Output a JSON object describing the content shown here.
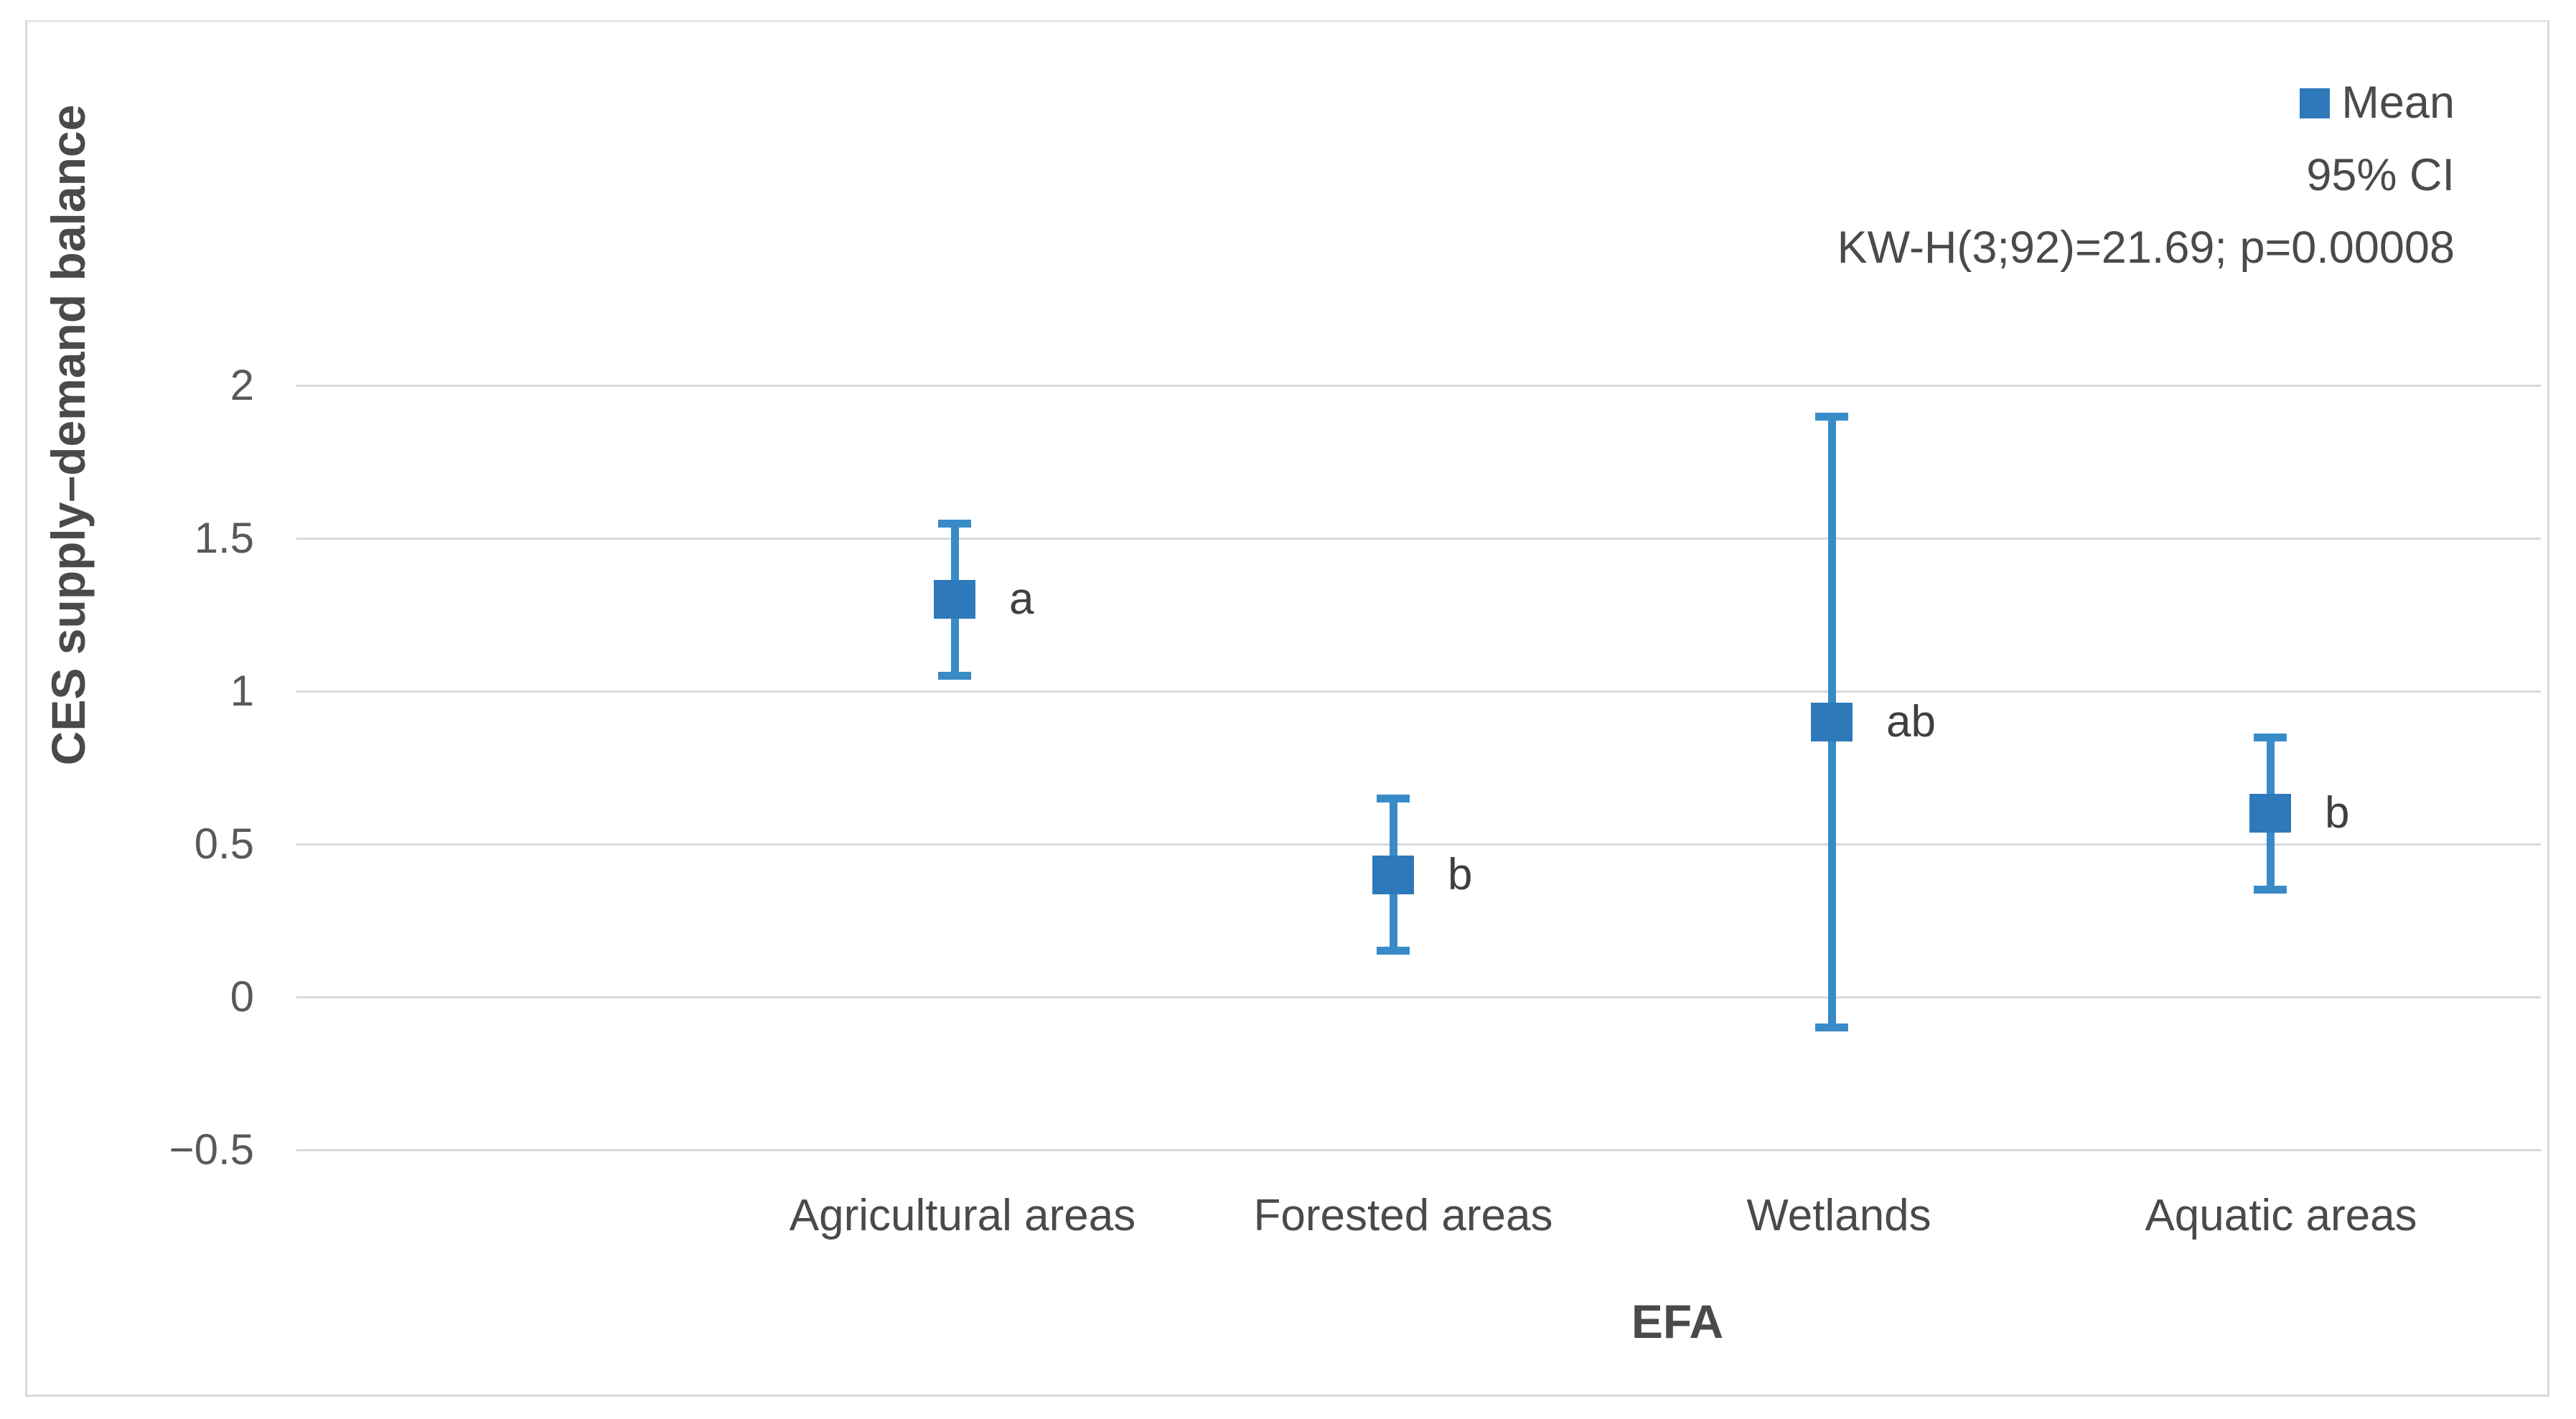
{
  "legend": {
    "mean_label": "Mean",
    "ci_label": "95% CI",
    "stat_text": "KW-H(3;92)=21.69; p=0.00008"
  },
  "axes": {
    "y_title": "CES supply–demand balance",
    "x_title": "EFA"
  },
  "chart_data": {
    "type": "scatter",
    "subtype": "mean-with-95ci-error-bars",
    "title": "",
    "xlabel": "EFA",
    "ylabel": "CES supply–demand balance",
    "categories": [
      "Agricultural areas",
      "Forested areas",
      "Wetlands",
      "Aquatic areas"
    ],
    "series": [
      {
        "name": "Mean",
        "values": [
          1.3,
          0.4,
          0.9,
          0.6
        ],
        "ci_low": [
          1.05,
          0.15,
          -0.1,
          0.35
        ],
        "ci_high": [
          1.55,
          0.65,
          1.9,
          0.85
        ],
        "sig_letters": [
          "a",
          "b",
          "ab",
          "b"
        ]
      }
    ],
    "annotation": "KW-H(3;92)=21.69; p=0.00008",
    "ylim": [
      -0.5,
      2
    ],
    "ytick_values": [
      2,
      1.5,
      1,
      0.5,
      0,
      -0.5
    ],
    "ytick_labels": [
      "2",
      "1.5",
      "1",
      "0.5",
      "0",
      "−0.5"
    ],
    "grid": true,
    "legend_position": "top-right",
    "legend_entries": [
      "Mean",
      "95% CI"
    ],
    "colors": {
      "marker": "#2e79ba",
      "whisker": "#398bc8",
      "gridline": "#d9d9d9",
      "frame_border": "#d9d9d9",
      "text": "#4a4a4a",
      "tick_text": "#595959"
    }
  }
}
